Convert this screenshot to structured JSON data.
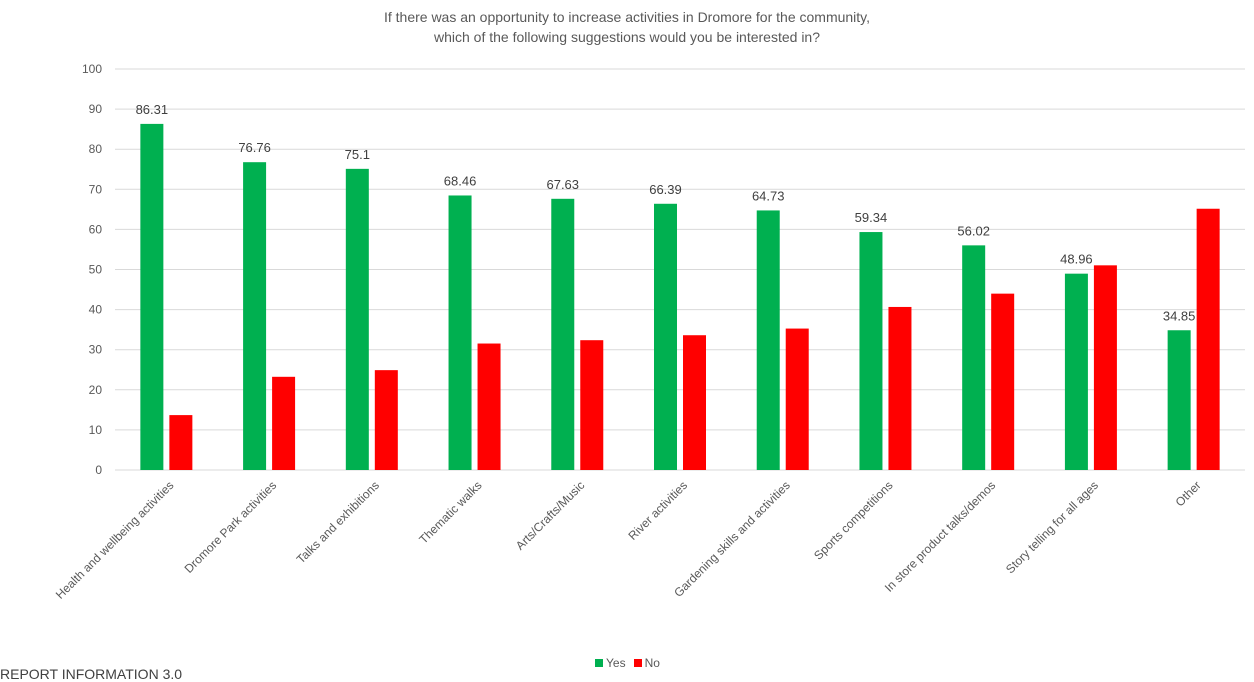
{
  "chart_data": {
    "type": "bar",
    "title_lines": [
      "If there was an opportunity to increase activities in Dromore for the community,",
      "which of the following suggestions would you be interested in?"
    ],
    "categories": [
      "Health and wellbeing activities",
      "Dromore Park activities",
      "Talks and exhibitions",
      "Thematic walks",
      "Arts/Crafts/Music",
      "River activities",
      "Gardening skills and activities",
      "Sports competitions",
      "In store product talks/demos",
      "Story telling for all ages",
      "Other"
    ],
    "series": [
      {
        "name": "Yes",
        "color": "#00b050",
        "values": [
          86.31,
          76.76,
          75.1,
          68.46,
          67.63,
          66.39,
          64.73,
          59.34,
          56.02,
          48.96,
          34.85
        ],
        "show_labels": true
      },
      {
        "name": "No",
        "color": "#ff0000",
        "values": [
          13.69,
          23.24,
          24.9,
          31.54,
          32.37,
          33.61,
          35.27,
          40.66,
          43.98,
          51.04,
          65.15
        ],
        "show_labels": false
      }
    ],
    "ylim": [
      0,
      100
    ],
    "yticks": [
      0,
      10,
      20,
      30,
      40,
      50,
      60,
      70,
      80,
      90,
      100
    ],
    "grid": true,
    "legend_position": "bottom"
  },
  "footer_text": "REPORT INFORMATION 3.0"
}
